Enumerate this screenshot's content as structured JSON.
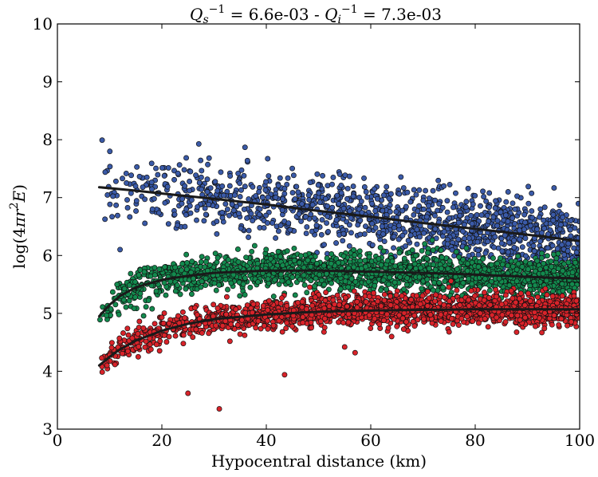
{
  "chart_data": {
    "type": "scatter",
    "title": "Q_s^{-1} = 6.6e-03 - Q_i^{-1} = 7.3e-03",
    "title_parts": {
      "qs_var": "Q",
      "qs_sub": "s",
      "qs_sup": "−1",
      "qs_value": " = 6.6e-03 - ",
      "qi_var": "Q",
      "qi_sub": "i",
      "qi_sup": "−1",
      "qi_value": " = 7.3e-03"
    },
    "xlabel": "Hypocentral distance (km)",
    "ylabel": "log(4πr²E)",
    "ylabel_parts": {
      "pre": "log(4",
      "pi": "π",
      "r": "r",
      "sup": "2",
      "E": "E",
      "post": ")"
    },
    "xlim": [
      0,
      100
    ],
    "ylim": [
      3,
      10
    ],
    "xticks": [
      0,
      20,
      40,
      60,
      80,
      100
    ],
    "yticks": [
      3,
      4,
      5,
      6,
      7,
      8,
      9,
      10
    ],
    "grid": false,
    "legend": "none",
    "series": [
      {
        "color": "#3a5aa8",
        "curve": [
          [
            8,
            7.18
          ],
          [
            15,
            7.12
          ],
          [
            20,
            7.07
          ],
          [
            30,
            6.98
          ],
          [
            40,
            6.88
          ],
          [
            50,
            6.77
          ],
          [
            60,
            6.67
          ],
          [
            70,
            6.56
          ],
          [
            80,
            6.46
          ],
          [
            90,
            6.36
          ],
          [
            100,
            6.25
          ]
        ],
        "x_range": [
          8,
          100
        ],
        "spread": 0.3,
        "count": 1300
      },
      {
        "color": "#138a4e",
        "curve": [
          [
            8,
            4.95
          ],
          [
            10,
            5.15
          ],
          [
            12,
            5.3
          ],
          [
            15,
            5.45
          ],
          [
            20,
            5.58
          ],
          [
            25,
            5.65
          ],
          [
            30,
            5.7
          ],
          [
            40,
            5.74
          ],
          [
            50,
            5.74
          ],
          [
            60,
            5.72
          ],
          [
            70,
            5.7
          ],
          [
            80,
            5.67
          ],
          [
            90,
            5.63
          ],
          [
            100,
            5.6
          ]
        ],
        "x_range": [
          8,
          100
        ],
        "spread": 0.16,
        "count": 1900
      },
      {
        "color": "#d9232a",
        "curve": [
          [
            8,
            4.1
          ],
          [
            10,
            4.25
          ],
          [
            12,
            4.38
          ],
          [
            15,
            4.53
          ],
          [
            20,
            4.7
          ],
          [
            25,
            4.82
          ],
          [
            30,
            4.9
          ],
          [
            40,
            4.98
          ],
          [
            50,
            5.03
          ],
          [
            60,
            5.05
          ],
          [
            70,
            5.06
          ],
          [
            80,
            5.07
          ],
          [
            90,
            5.07
          ],
          [
            100,
            5.07
          ]
        ],
        "x_range": [
          8,
          100
        ],
        "spread": 0.13,
        "count": 1900,
        "outliers": [
          [
            25,
            3.62
          ],
          [
            31,
            3.35
          ],
          [
            43.5,
            3.94
          ],
          [
            55,
            4.42
          ],
          [
            57,
            4.32
          ],
          [
            64,
            4.6
          ],
          [
            75,
            4.68
          ]
        ]
      }
    ]
  }
}
